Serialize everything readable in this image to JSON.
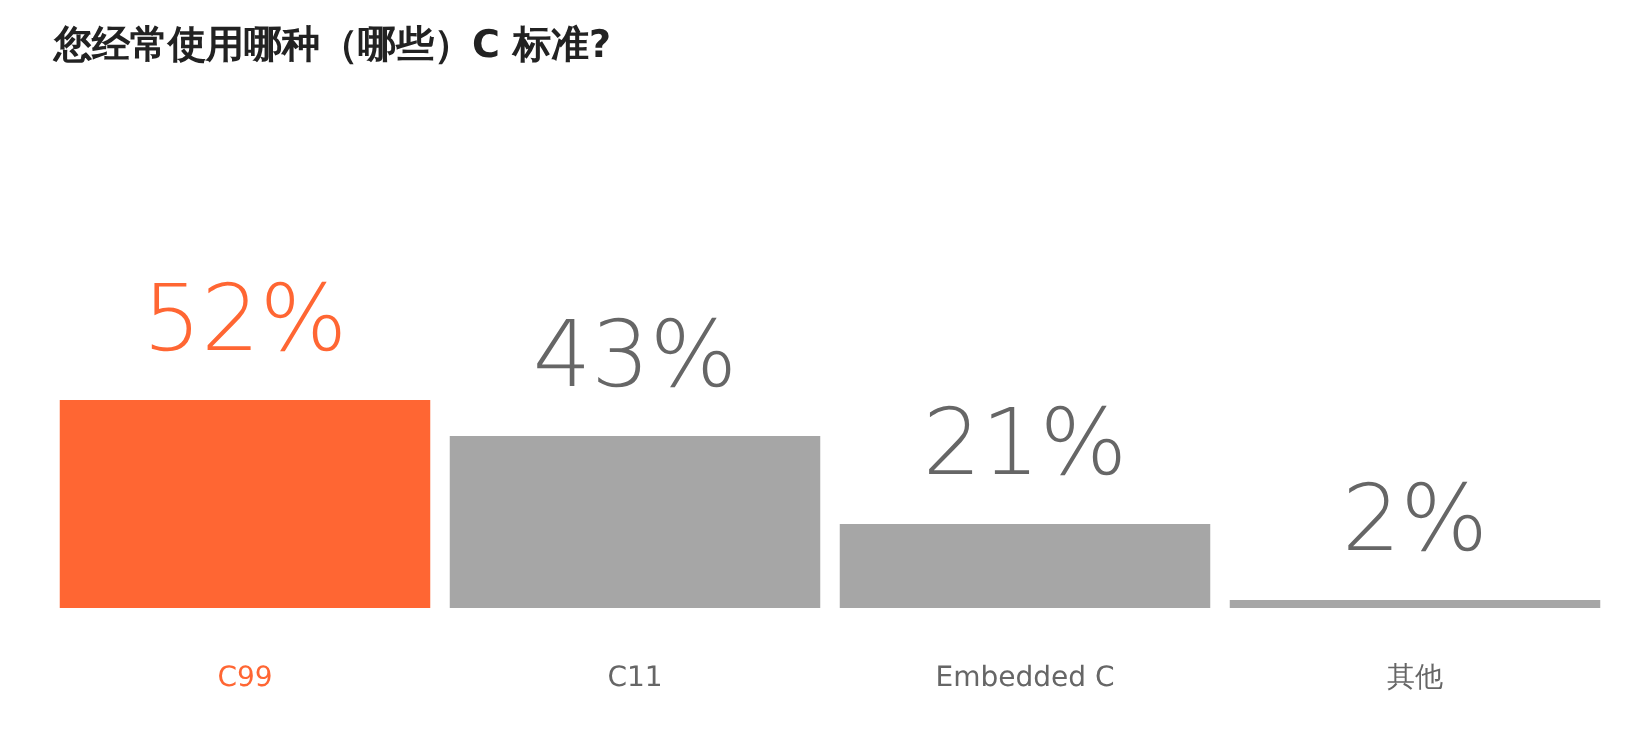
{
  "chart_data": {
    "type": "bar",
    "title": "您经常使用哪种（哪些）C 标准?",
    "categories": [
      "C99",
      "C11",
      "Embedded C",
      "其他"
    ],
    "values": [
      52,
      43,
      21,
      2
    ],
    "colors": [
      "#ff6633",
      "#a6a6a6",
      "#a6a6a6",
      "#a6a6a6"
    ],
    "value_labels": [
      "52%",
      "43%",
      "21%",
      "2%"
    ]
  }
}
